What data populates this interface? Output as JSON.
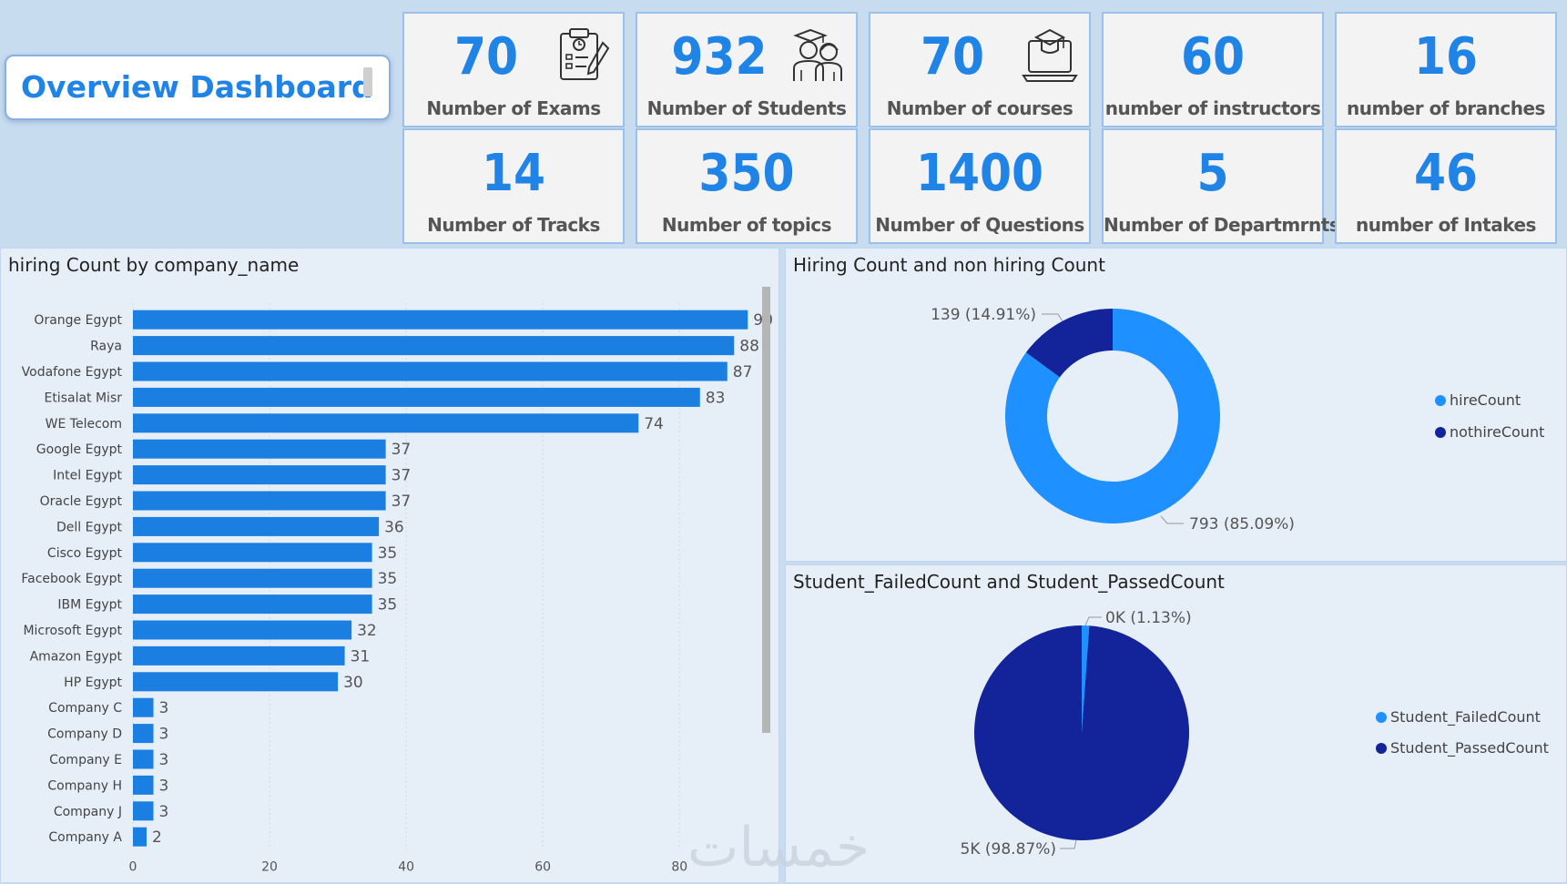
{
  "header": {
    "title": "Overview Dashboard"
  },
  "kpis": [
    {
      "value": "70",
      "label": "Number of Exams",
      "icon": "exam-clipboard-icon"
    },
    {
      "value": "932",
      "label": "Number of Students",
      "icon": "students-icon"
    },
    {
      "value": "70",
      "label": "Number of courses",
      "icon": "laptop-graduation-icon"
    },
    {
      "value": "60",
      "label": "number of instructors",
      "icon": ""
    },
    {
      "value": "16",
      "label": "number of branches",
      "icon": ""
    },
    {
      "value": "14",
      "label": "Number of Tracks",
      "icon": ""
    },
    {
      "value": "350",
      "label": "Number of topics",
      "icon": ""
    },
    {
      "value": "1400",
      "label": "Number of Questions",
      "icon": ""
    },
    {
      "value": "5",
      "label": "Number of Departmrnts",
      "icon": ""
    },
    {
      "value": "46",
      "label": "number of Intakes",
      "icon": ""
    }
  ],
  "colors": {
    "accent": "#1f84e6",
    "bar": "#1a7fe0",
    "light_blue": "#1e90ff",
    "dark_navy": "#13239a"
  },
  "watermark": "خمسات",
  "chart_data": [
    {
      "type": "bar",
      "orientation": "horizontal",
      "title": "hiring Count by company_name",
      "categories": [
        "Orange Egypt",
        "Raya",
        "Vodafone Egypt",
        "Etisalat Misr",
        "WE Telecom",
        "Google Egypt",
        "Intel Egypt",
        "Oracle Egypt",
        "Dell Egypt",
        "Cisco Egypt",
        "Facebook Egypt",
        "IBM Egypt",
        "Microsoft Egypt",
        "Amazon Egypt",
        "HP Egypt",
        "Company C",
        "Company D",
        "Company E",
        "Company H",
        "Company J",
        "Company A"
      ],
      "values": [
        90,
        88,
        87,
        83,
        74,
        37,
        37,
        37,
        36,
        35,
        35,
        35,
        32,
        31,
        30,
        3,
        3,
        3,
        3,
        3,
        2
      ],
      "xticks": [
        0,
        20,
        40,
        60,
        80
      ],
      "xlim": [
        0,
        95
      ]
    },
    {
      "type": "pie",
      "variant": "donut",
      "title": "Hiring Count and non hiring Count",
      "slices": [
        {
          "name": "hireCount",
          "value": 793,
          "label": "793 (85.09%)",
          "color": "#1e90ff"
        },
        {
          "name": "nothireCount",
          "value": 139,
          "label": "139 (14.91%)",
          "color": "#13239a"
        }
      ]
    },
    {
      "type": "pie",
      "title": "Student_FailedCount and Student_PassedCount",
      "slices": [
        {
          "name": "Student_FailedCount",
          "value": 1.13,
          "label": "0K (1.13%)",
          "color": "#1e90ff"
        },
        {
          "name": "Student_PassedCount",
          "value": 98.87,
          "label": "5K (98.87%)",
          "color": "#13239a"
        }
      ]
    }
  ]
}
